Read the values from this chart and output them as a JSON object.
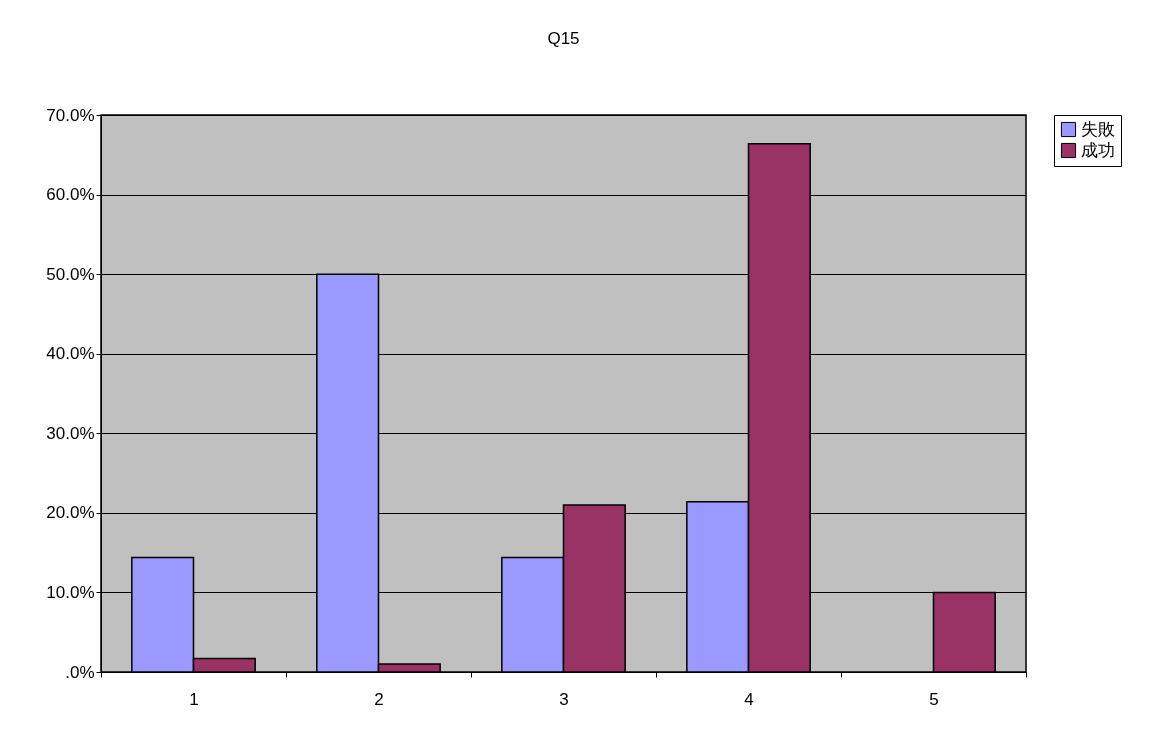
{
  "chart_data": {
    "type": "bar",
    "title": "Q15",
    "categories": [
      "1",
      "2",
      "3",
      "4",
      "5"
    ],
    "series": [
      {
        "name": "失敗",
        "color": "#9999ff",
        "values": [
          14.4,
          50.0,
          14.4,
          21.4,
          null
        ]
      },
      {
        "name": "成功",
        "color": "#993366",
        "values": [
          1.7,
          1.0,
          21.0,
          66.4,
          10.0
        ]
      }
    ],
    "ylim": [
      0,
      70
    ],
    "yticks": [
      {
        "value": 0,
        "label": ".0%"
      },
      {
        "value": 10,
        "label": "10.0%"
      },
      {
        "value": 20,
        "label": "20.0%"
      },
      {
        "value": 30,
        "label": "30.0%"
      },
      {
        "value": 40,
        "label": "40.0%"
      },
      {
        "value": 50,
        "label": "50.0%"
      },
      {
        "value": 60,
        "label": "60.0%"
      },
      {
        "value": 70,
        "label": "70.0%"
      }
    ],
    "grid": "y",
    "legend": "right"
  }
}
